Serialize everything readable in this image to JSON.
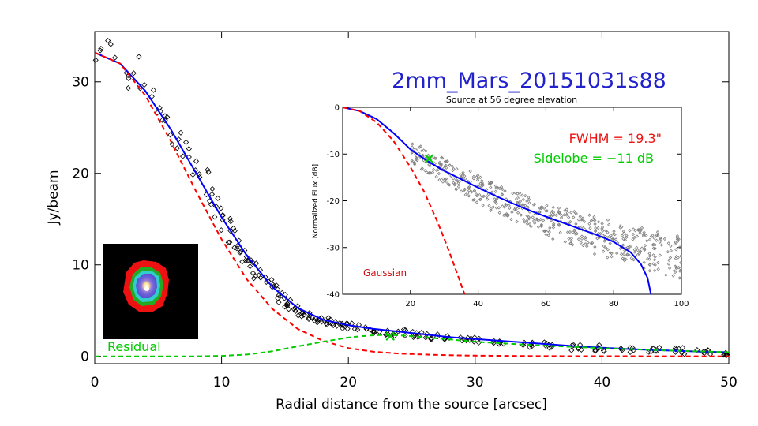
{
  "chart_data": [
    {
      "type": "scatter",
      "title": "2mm_Mars_20151031s88",
      "xlabel": "Radial distance from the source [arcsec]",
      "ylabel": "Jy/beam",
      "xlim": [
        0,
        50
      ],
      "ylim": [
        -0.8,
        35.5
      ],
      "x_ticks": [
        0,
        10,
        20,
        30,
        40,
        50
      ],
      "y_ticks": [
        0,
        10,
        20,
        30
      ],
      "annotations": {
        "residual": "Residual"
      },
      "series": [
        {
          "kind": "points",
          "marker": "diamond",
          "color": "#000000",
          "x": [
            0.5,
            1.5,
            2.5,
            3.0,
            4.0,
            5.0,
            5.5,
            6.0,
            6.5,
            7.0,
            7.5,
            8.0,
            8.5,
            9.0,
            9.5,
            10.0,
            10.5,
            11.0,
            11.5,
            12.0,
            12.5,
            13.0,
            13.5,
            14.0,
            14.5,
            15.0,
            15.5,
            16.0,
            16.5,
            17.0,
            17.5,
            18.0,
            18.5,
            19.0,
            19.5,
            20.0,
            21.0,
            22.0,
            23.0,
            24.0,
            25.0,
            26.0,
            27.0,
            28.0,
            29.0,
            30.0,
            32.0,
            34.0,
            36.0,
            38.0,
            40.0,
            42.0,
            44.0,
            46.0,
            48.0,
            50.0
          ],
          "y": [
            33.4,
            33.0,
            32.0,
            31.0,
            29.5,
            27.5,
            26.3,
            25.0,
            24.0,
            23.0,
            21.8,
            20.5,
            19.3,
            18.0,
            16.8,
            15.5,
            14.4,
            13.2,
            12.1,
            11.0,
            10.0,
            9.0,
            8.2,
            7.4,
            6.7,
            6.0,
            5.5,
            5.0,
            4.7,
            4.4,
            4.1,
            3.9,
            3.7,
            3.5,
            3.4,
            3.3,
            3.1,
            2.9,
            2.7,
            2.6,
            2.4,
            2.3,
            2.1,
            2.0,
            1.9,
            1.8,
            1.5,
            1.3,
            1.2,
            1.0,
            0.9,
            0.8,
            0.7,
            0.6,
            0.5,
            0.4
          ]
        },
        {
          "kind": "line",
          "color": "#0000ff",
          "x": [
            0,
            2,
            4,
            6,
            8,
            10,
            12,
            14,
            16,
            18,
            20,
            22,
            24,
            26,
            28,
            30,
            32,
            34,
            36,
            38,
            40,
            42,
            44,
            46,
            48,
            50
          ],
          "y": [
            33.2,
            32.0,
            29.0,
            24.8,
            20.0,
            15.2,
            11.0,
            7.6,
            5.3,
            4.0,
            3.4,
            3.0,
            2.7,
            2.4,
            2.1,
            1.9,
            1.7,
            1.5,
            1.3,
            1.1,
            0.95,
            0.8,
            0.7,
            0.6,
            0.5,
            0.45
          ]
        },
        {
          "kind": "line",
          "style": "dashed",
          "color": "#ff0000",
          "x": [
            0,
            2,
            4,
            6,
            8,
            10,
            12,
            14,
            16,
            18,
            20,
            22,
            24,
            26,
            28,
            30,
            35,
            40,
            45,
            50
          ],
          "y": [
            33.2,
            32.0,
            28.5,
            23.5,
            18.0,
            12.8,
            8.4,
            5.2,
            3.0,
            1.7,
            0.9,
            0.5,
            0.3,
            0.2,
            0.12,
            0.08,
            0.03,
            0.02,
            0.01,
            0.0
          ]
        },
        {
          "kind": "line",
          "style": "dashed",
          "color": "#00cc00",
          "x": [
            0,
            5,
            8,
            10,
            12,
            14,
            16,
            18,
            20,
            21,
            22,
            23,
            24,
            26,
            28,
            30,
            35,
            40,
            45,
            50
          ],
          "y": [
            0,
            0,
            0,
            0.05,
            0.2,
            0.55,
            1.1,
            1.6,
            2.05,
            2.2,
            2.3,
            2.35,
            2.3,
            2.1,
            1.85,
            1.6,
            1.2,
            0.9,
            0.65,
            0.45
          ]
        },
        {
          "kind": "marker",
          "marker": "x",
          "color": "#00cc00",
          "x": [
            23.3
          ],
          "y": [
            2.2
          ]
        }
      ]
    },
    {
      "type": "scatter",
      "title": "Source at 56 degree elevation",
      "ylabel": "Normalized Flux [dB]",
      "xlim": [
        0,
        100
      ],
      "ylim": [
        -40,
        0
      ],
      "x_ticks": [
        20,
        40,
        60,
        80,
        100
      ],
      "y_ticks": [
        0,
        -10,
        -20,
        -30,
        -40
      ],
      "annotations": {
        "fwhm": "FWHM = 19.3\"",
        "sidelobe": "Sidelobe = −11 dB",
        "gaussian": "Gaussian"
      },
      "series": [
        {
          "kind": "points",
          "marker": "diamond",
          "color": "#808080",
          "x": [
            20,
            25,
            30,
            35,
            40,
            45,
            50,
            55,
            60,
            65,
            70,
            75,
            80,
            85,
            90,
            95,
            100
          ],
          "y": [
            -9.5,
            -11.5,
            -13.5,
            -15.5,
            -17.5,
            -19.5,
            -21.0,
            -22.5,
            -24.0,
            -25.3,
            -26.5,
            -27.5,
            -28.5,
            -29.5,
            -30.5,
            -31.5,
            -32.5
          ],
          "spread_db": 3
        },
        {
          "kind": "line",
          "color": "#0000ff",
          "x": [
            0,
            5,
            10,
            15,
            20,
            25,
            30,
            35,
            40,
            45,
            50,
            55,
            60,
            65,
            70,
            75,
            80,
            85,
            88,
            90,
            91
          ],
          "y": [
            0,
            -0.8,
            -2.5,
            -5.5,
            -9.0,
            -11.5,
            -13.6,
            -15.4,
            -17.2,
            -18.9,
            -20.5,
            -22.0,
            -23.4,
            -24.7,
            -26.0,
            -27.3,
            -28.8,
            -31.0,
            -33.5,
            -36.5,
            -40.0
          ]
        },
        {
          "kind": "line",
          "style": "dashed",
          "color": "#ff0000",
          "x": [
            0,
            5,
            10,
            15,
            20,
            24,
            28,
            31,
            34,
            36
          ],
          "y": [
            0,
            -0.8,
            -3.2,
            -7.2,
            -12.8,
            -18.0,
            -24.5,
            -30.0,
            -36.0,
            -40.0
          ]
        },
        {
          "kind": "marker",
          "marker": "x",
          "color": "#00cc00",
          "x": [
            25.5
          ],
          "y": [
            -11
          ]
        }
      ]
    }
  ]
}
